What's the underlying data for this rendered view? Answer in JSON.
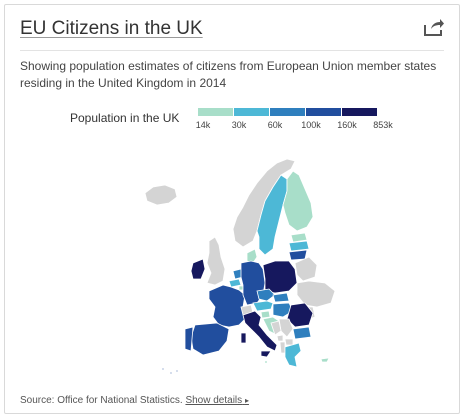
{
  "card": {
    "title": "EU Citizens in the UK",
    "description": "Showing population estimates of citizens from European Union member states residing in the United Kingdom in 2014",
    "share_icon": "share-arrow-icon"
  },
  "legend": {
    "title": "Population in the UK",
    "labels": [
      "14k",
      "30k",
      "60k",
      "100k",
      "160k",
      "853k"
    ],
    "colors": [
      "#a8dec9",
      "#4db8d6",
      "#2f7fbe",
      "#214e9e",
      "#16185e"
    ]
  },
  "map": {
    "no_data_color": "#d4d4d4",
    "countries": [
      {
        "name": "Iceland",
        "status": "no-data"
      },
      {
        "name": "Norway",
        "status": "no-data"
      },
      {
        "name": "Sweden",
        "bin": 1
      },
      {
        "name": "Finland",
        "bin": 0
      },
      {
        "name": "Denmark",
        "bin": 0
      },
      {
        "name": "Estonia",
        "bin": 0
      },
      {
        "name": "Latvia",
        "bin": 1
      },
      {
        "name": "Lithuania",
        "bin": 3
      },
      {
        "name": "United Kingdom",
        "status": "no-data"
      },
      {
        "name": "Ireland",
        "bin": 4
      },
      {
        "name": "Netherlands",
        "bin": 2
      },
      {
        "name": "Belgium",
        "bin": 1
      },
      {
        "name": "Luxembourg",
        "bin": 0
      },
      {
        "name": "France",
        "bin": 3
      },
      {
        "name": "Germany",
        "bin": 3
      },
      {
        "name": "Poland",
        "bin": 4
      },
      {
        "name": "Czech Republic",
        "bin": 2
      },
      {
        "name": "Slovakia",
        "bin": 2
      },
      {
        "name": "Austria",
        "bin": 1
      },
      {
        "name": "Hungary",
        "bin": 2
      },
      {
        "name": "Slovenia",
        "bin": 0
      },
      {
        "name": "Croatia",
        "bin": 0
      },
      {
        "name": "Romania",
        "bin": 4
      },
      {
        "name": "Bulgaria",
        "bin": 2
      },
      {
        "name": "Italy",
        "bin": 4
      },
      {
        "name": "Spain",
        "bin": 3
      },
      {
        "name": "Portugal",
        "bin": 3
      },
      {
        "name": "Greece",
        "bin": 1
      },
      {
        "name": "Cyprus",
        "bin": 0
      },
      {
        "name": "Malta",
        "bin": 0
      },
      {
        "name": "Switzerland",
        "status": "no-data"
      },
      {
        "name": "Belarus",
        "status": "no-data"
      },
      {
        "name": "Ukraine",
        "status": "no-data"
      },
      {
        "name": "Moldova",
        "status": "no-data"
      },
      {
        "name": "Serbia",
        "status": "no-data"
      },
      {
        "name": "Bosnia and Herzegovina",
        "status": "no-data"
      },
      {
        "name": "Montenegro",
        "status": "no-data"
      },
      {
        "name": "North Macedonia",
        "status": "no-data"
      },
      {
        "name": "Albania",
        "status": "no-data"
      }
    ]
  },
  "footer": {
    "source": "Source: Office for National Statistics.",
    "details_link": "Show details",
    "details_arrow": "▸"
  }
}
